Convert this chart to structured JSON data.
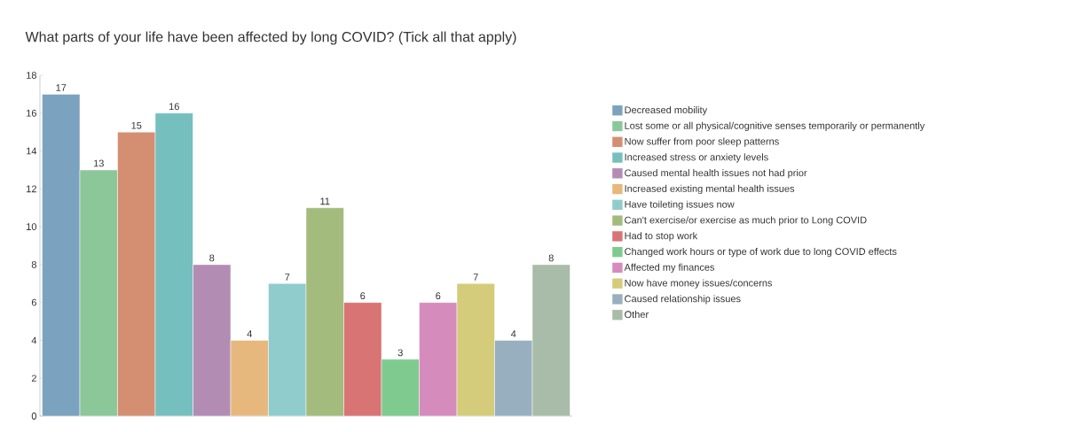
{
  "chart_data": {
    "type": "bar",
    "title": "What parts of your life have been affected by long COVID? (Tick all that apply)",
    "categories": [
      null
    ],
    "series": [
      {
        "name": "Decreased mobility",
        "color": "#7ba3c0",
        "values": [
          17
        ]
      },
      {
        "name": "Lost some or all physical/cognitive senses temporarily or permanently",
        "color": "#8cc79a",
        "values": [
          13
        ]
      },
      {
        "name": "Now suffer from poor sleep patterns",
        "color": "#d48f72",
        "values": [
          15
        ]
      },
      {
        "name": "Increased stress or anxiety levels",
        "color": "#76bfbf",
        "values": [
          16
        ]
      },
      {
        "name": "Caused mental health issues not had prior",
        "color": "#b38cb4",
        "values": [
          8
        ]
      },
      {
        "name": "Increased existing mental health issues",
        "color": "#e6b87e",
        "values": [
          4
        ]
      },
      {
        "name": "Have toileting issues now",
        "color": "#90cccc",
        "values": [
          7
        ]
      },
      {
        "name": "Can't exercise/or exercise as much prior to Long COVID",
        "color": "#a3bb7d",
        "values": [
          11
        ]
      },
      {
        "name": "Had to stop work",
        "color": "#d87474",
        "values": [
          6
        ]
      },
      {
        "name": "Changed work hours or type of work due to long COVID effects",
        "color": "#7fcb8f",
        "values": [
          3
        ]
      },
      {
        "name": "Affected my finances",
        "color": "#d68bbd",
        "values": [
          6
        ]
      },
      {
        "name": "Now have money issues/concerns",
        "color": "#d4cc7a",
        "values": [
          7
        ]
      },
      {
        "name": "Caused relationship issues",
        "color": "#98afc0",
        "values": [
          4
        ]
      },
      {
        "name": "Other",
        "color": "#a9bba9",
        "values": [
          8
        ]
      }
    ],
    "ylim": [
      0,
      18
    ],
    "yticks": [
      0,
      2,
      4,
      6,
      8,
      10,
      12,
      14,
      16,
      18
    ],
    "tick_labels": "y",
    "data_labels": true,
    "legend": "right",
    "grid": false
  }
}
